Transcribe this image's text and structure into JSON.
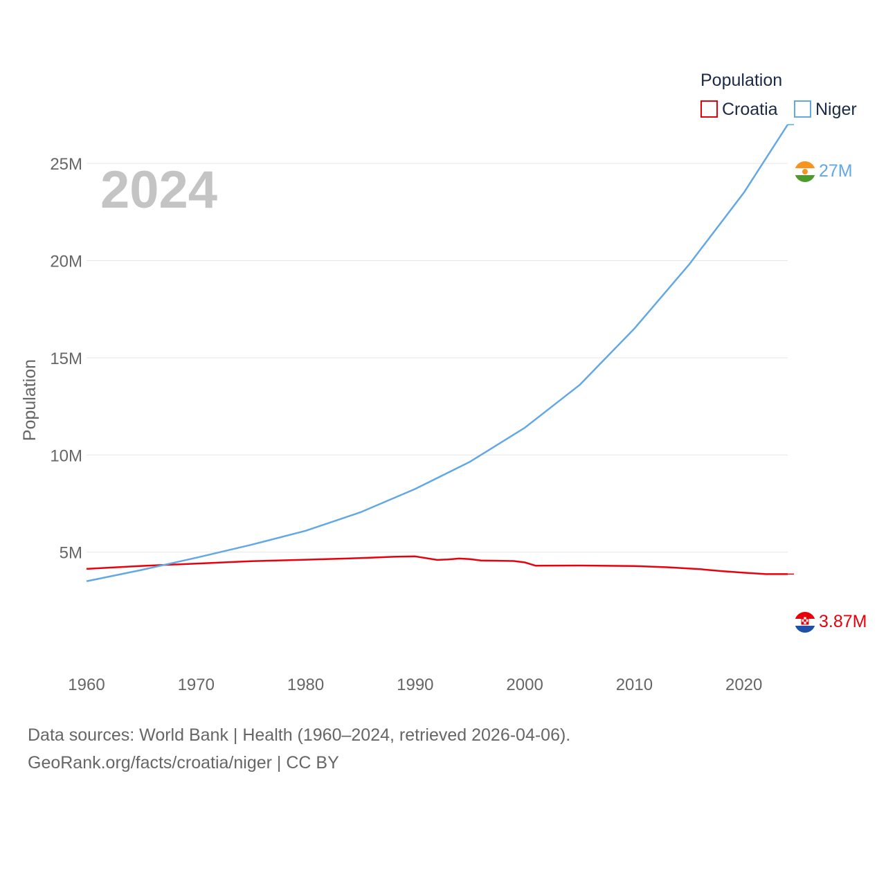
{
  "chart_data": {
    "type": "line",
    "year_label": "2024",
    "ylabel": "Population",
    "legend_title": "Population",
    "legend_position": "top-right",
    "ylim": [
      0,
      27500000
    ],
    "xlim": [
      1960,
      2024
    ],
    "x_ticks": [
      1960,
      1970,
      1980,
      1990,
      2000,
      2010,
      2020
    ],
    "y_ticks": [
      {
        "value": 5000000,
        "label": "5M"
      },
      {
        "value": 10000000,
        "label": "10M"
      },
      {
        "value": 15000000,
        "label": "15M"
      },
      {
        "value": 20000000,
        "label": "20M"
      },
      {
        "value": 25000000,
        "label": "25M"
      }
    ],
    "series": [
      {
        "name": "Croatia",
        "color": "#e8000b",
        "end_label": "3.87M",
        "flag": "croatia-flag",
        "points": [
          [
            1960,
            4140000
          ],
          [
            1965,
            4290000
          ],
          [
            1970,
            4410000
          ],
          [
            1975,
            4530000
          ],
          [
            1980,
            4610000
          ],
          [
            1985,
            4690000
          ],
          [
            1988,
            4760000
          ],
          [
            1990,
            4780000
          ],
          [
            1992,
            4600000
          ],
          [
            1993,
            4620000
          ],
          [
            1994,
            4670000
          ],
          [
            1995,
            4640000
          ],
          [
            1996,
            4570000
          ],
          [
            1997,
            4560000
          ],
          [
            1999,
            4540000
          ],
          [
            2000,
            4470000
          ],
          [
            2001,
            4300000
          ],
          [
            2005,
            4310000
          ],
          [
            2010,
            4280000
          ],
          [
            2013,
            4220000
          ],
          [
            2016,
            4120000
          ],
          [
            2018,
            4020000
          ],
          [
            2020,
            3940000
          ],
          [
            2022,
            3870000
          ],
          [
            2024,
            3870000
          ]
        ]
      },
      {
        "name": "Niger",
        "color": "#62a8e5",
        "end_label": "27M",
        "flag": "niger-flag",
        "points": [
          [
            1960,
            3500000
          ],
          [
            1965,
            4080000
          ],
          [
            1970,
            4710000
          ],
          [
            1975,
            5370000
          ],
          [
            1980,
            6100000
          ],
          [
            1985,
            7050000
          ],
          [
            1990,
            8250000
          ],
          [
            1995,
            9650000
          ],
          [
            2000,
            11400000
          ],
          [
            2005,
            13600000
          ],
          [
            2010,
            16500000
          ],
          [
            2015,
            19800000
          ],
          [
            2020,
            23500000
          ],
          [
            2024,
            27000000
          ]
        ]
      }
    ]
  },
  "footer": {
    "line1": "Data sources: World Bank | Health (1960–2024, retrieved 2026-04-06).",
    "line2": "GeoRank.org/facts/croatia/niger | CC BY"
  }
}
